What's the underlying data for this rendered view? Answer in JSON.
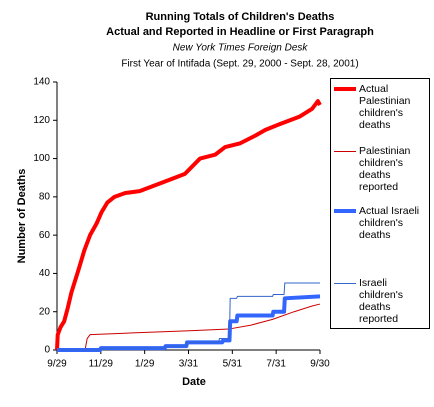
{
  "chart_data": {
    "type": "line",
    "title": [
      "Running Totals of Children's Deaths",
      "Actual and Reported in Headline or First Paragraph"
    ],
    "subtitle": [
      "New York Times Foreign Desk",
      "First Year of Intifada (Sept. 29, 2000 - Sept. 28, 2001)"
    ],
    "x_label": "Date",
    "y_label": "Number of Deaths",
    "xlim": [
      0,
      366
    ],
    "ylim": [
      0,
      140
    ],
    "xticks": [
      {
        "value": 0,
        "label": "9/29"
      },
      {
        "value": 61,
        "label": "11/29"
      },
      {
        "value": 122,
        "label": "1/29"
      },
      {
        "value": 183,
        "label": "3/31"
      },
      {
        "value": 244,
        "label": "5/31"
      },
      {
        "value": 305,
        "label": "7/31"
      },
      {
        "value": 366,
        "label": "9/30"
      }
    ],
    "yticks": [
      0,
      20,
      40,
      60,
      80,
      100,
      120,
      140
    ],
    "series": [
      {
        "name": "Actual Palestinian children's deaths",
        "color": "#ff0000",
        "width": 4,
        "x": [
          0,
          1,
          5,
          10,
          15,
          20,
          25,
          30,
          38,
          46,
          55,
          62,
          70,
          80,
          95,
          115,
          143,
          164,
          178,
          199,
          220,
          234,
          255,
          276,
          290,
          310,
          338,
          355,
          363,
          366
        ],
        "values": [
          0,
          8,
          12,
          15,
          22,
          30,
          36,
          42,
          52,
          60,
          66,
          72,
          77,
          80,
          82,
          83,
          87,
          90,
          92,
          100,
          102,
          106,
          108,
          112,
          115,
          118,
          122,
          126,
          130,
          128
        ]
      },
      {
        "name": "Palestinian children's deaths reported",
        "color": "#cc0000",
        "width": 1,
        "x": [
          0,
          39,
          42,
          46,
          110,
          180,
          240,
          270,
          300,
          330,
          355,
          366
        ],
        "values": [
          0,
          0,
          6,
          8,
          9,
          10,
          11,
          13,
          16,
          20,
          23,
          24
        ]
      },
      {
        "name": "Actual Israeli children's deaths",
        "color": "#3366ff",
        "width": 4,
        "x": [
          0,
          60,
          61,
          150,
          151,
          180,
          181,
          230,
          231,
          240,
          241,
          250,
          251,
          300,
          301,
          316,
          317,
          366
        ],
        "values": [
          0,
          0,
          1,
          1,
          2,
          2,
          4,
          4,
          5,
          5,
          15,
          15,
          18,
          18,
          20,
          20,
          27,
          28
        ]
      },
      {
        "name": "Israeli children's deaths reported",
        "color": "#3366cc",
        "width": 1,
        "x": [
          0,
          60,
          61,
          150,
          151,
          180,
          181,
          225,
          226,
          240,
          241,
          250,
          251,
          300,
          301,
          316,
          317,
          366
        ],
        "values": [
          0,
          0,
          1,
          1,
          2,
          2,
          4,
          4,
          6,
          6,
          27,
          27,
          28,
          28,
          29,
          29,
          35,
          35
        ]
      }
    ]
  }
}
